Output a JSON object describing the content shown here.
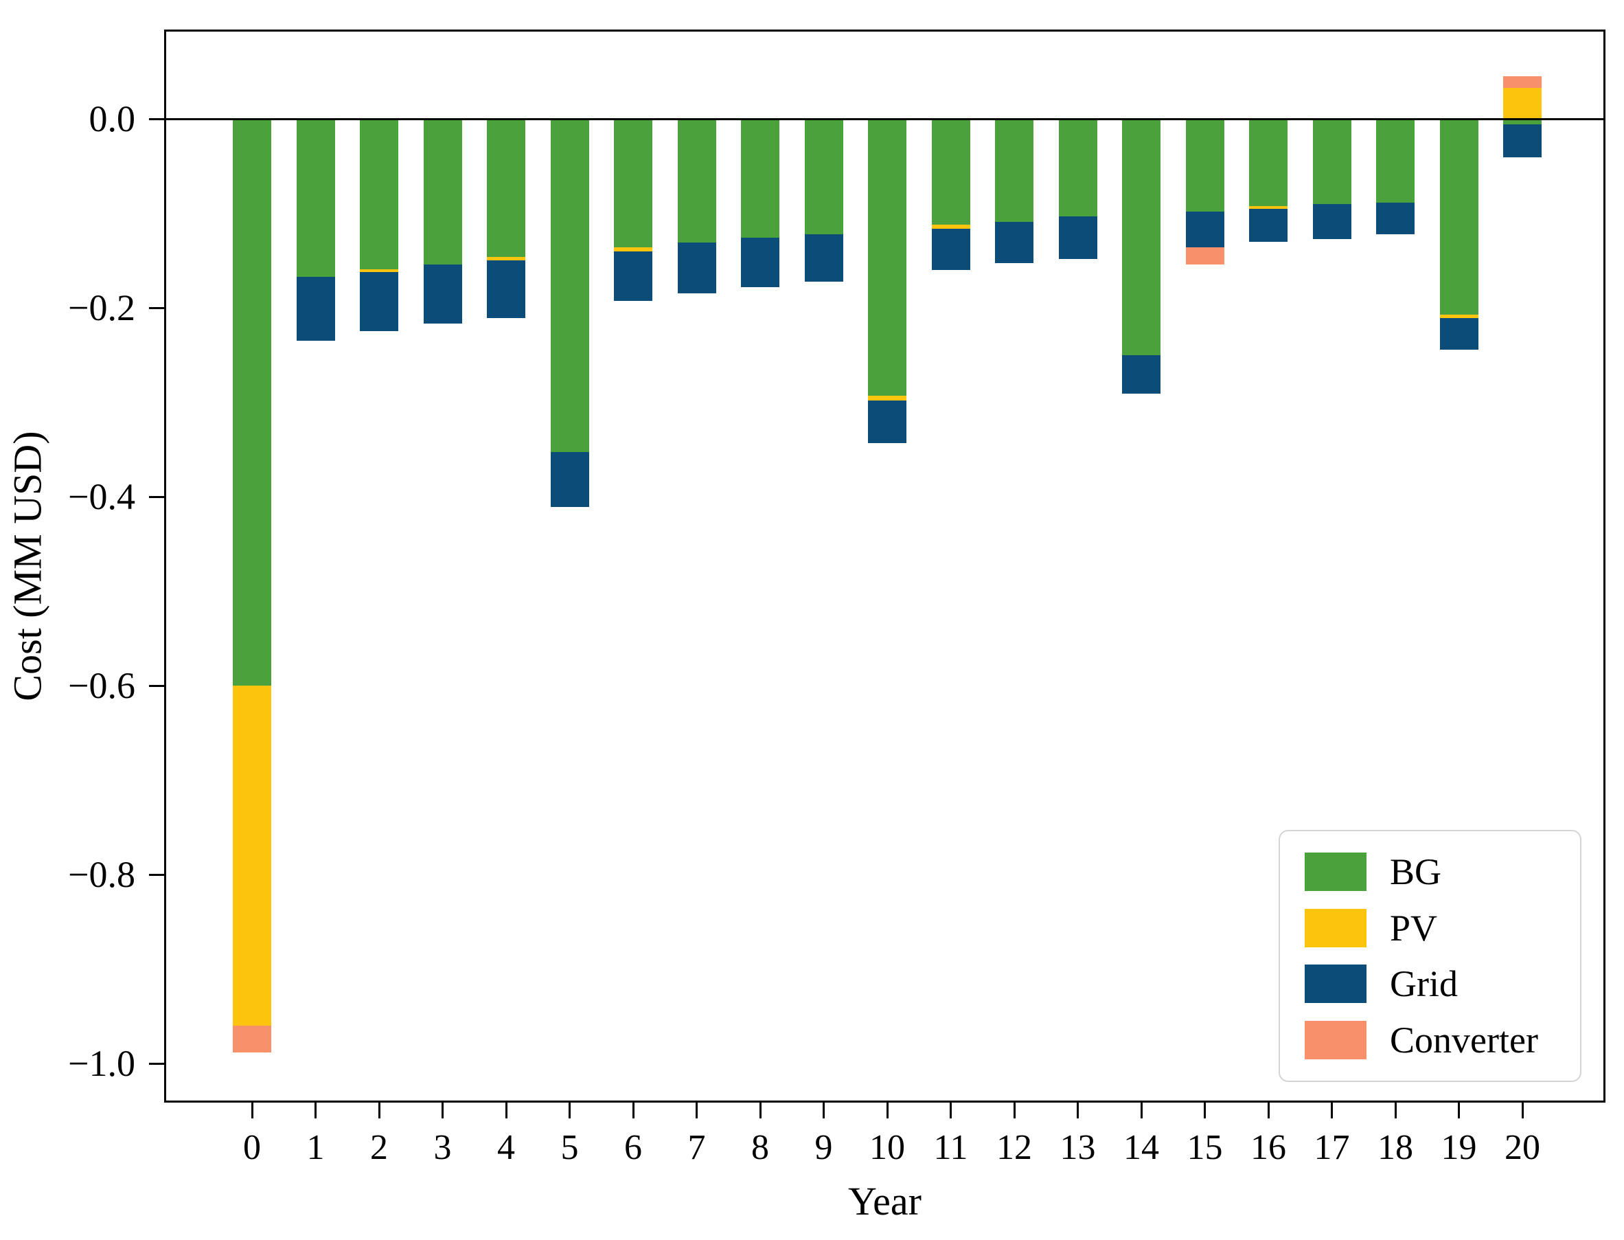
{
  "chart_data": {
    "type": "bar",
    "stacked": true,
    "title": "",
    "xlabel": "Year",
    "ylabel": "Cost (MM USD)",
    "categories": [
      "0",
      "1",
      "2",
      "3",
      "4",
      "5",
      "6",
      "7",
      "8",
      "9",
      "10",
      "11",
      "12",
      "13",
      "14",
      "15",
      "16",
      "17",
      "18",
      "19",
      "20"
    ],
    "ylim": [
      -1.039,
      0.0945
    ],
    "yticks": [
      {
        "value": 0.0,
        "label": "0.0"
      },
      {
        "value": -0.2,
        "label": "−0.2"
      },
      {
        "value": -0.4,
        "label": "−0.4"
      },
      {
        "value": -0.6,
        "label": "−0.6"
      },
      {
        "value": -0.8,
        "label": "−0.8"
      },
      {
        "value": -1.0,
        "label": "−1.0"
      }
    ],
    "grid": false,
    "legend_position": "lower right",
    "series": [
      {
        "name": "BG",
        "color": "#4BA23C",
        "values": [
          -0.6,
          -0.167,
          -0.159,
          -0.154,
          -0.146,
          -0.353,
          -0.136,
          -0.131,
          -0.126,
          -0.122,
          -0.293,
          -0.112,
          -0.109,
          -0.103,
          -0.25,
          -0.098,
          -0.092,
          -0.09,
          -0.089,
          -0.207,
          -0.006
        ]
      },
      {
        "name": "PV",
        "color": "#FCC40D",
        "values": [
          -0.36,
          0,
          -0.003,
          0,
          -0.004,
          0,
          -0.004,
          0,
          0,
          0,
          -0.005,
          -0.004,
          0,
          0,
          0,
          0,
          -0.003,
          0,
          0,
          -0.004,
          0.033
        ]
      },
      {
        "name": "Grid",
        "color": "#0B4D78",
        "values": [
          0,
          -0.068,
          -0.063,
          -0.063,
          -0.061,
          -0.058,
          -0.053,
          -0.054,
          -0.052,
          -0.05,
          -0.045,
          -0.044,
          -0.044,
          -0.045,
          -0.041,
          -0.038,
          -0.035,
          -0.037,
          -0.033,
          -0.033,
          -0.035
        ]
      },
      {
        "name": "Converter",
        "color": "#F9906C",
        "values": [
          -0.028,
          0,
          0,
          0,
          0,
          0,
          0,
          0,
          0,
          0,
          0,
          0,
          0,
          0,
          0,
          -0.018,
          0,
          0,
          0,
          0,
          0.012
        ]
      }
    ]
  }
}
